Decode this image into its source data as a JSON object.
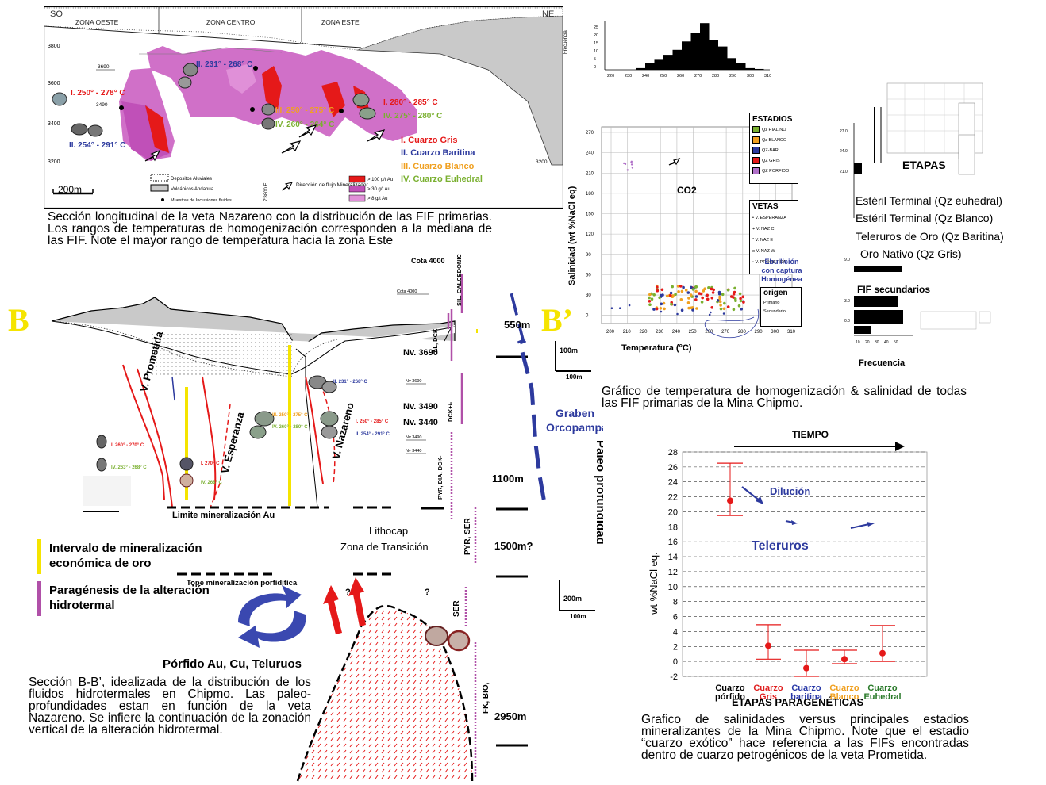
{
  "panelA": {
    "corner_sw": "SO",
    "corner_ne": "NE",
    "zones": [
      "ZONA OESTE",
      "ZONA CENTRO",
      "ZONA ESTE"
    ],
    "elevations": [
      "3800",
      "3600",
      "3400",
      "3200"
    ],
    "level_3690": "3690",
    "level_3490": "3490",
    "level_3200": "3200",
    "easting": "7'8800 E",
    "temps": {
      "west_I": "I. 250° - 278° C",
      "west_II": "II. 254° - 291° C",
      "center_II": "II. 231° - 268° C",
      "center_III": "III. 250° - 275° C",
      "center_IV": "IV. 260° - 264° C",
      "east_I": "I. 280° - 285° C",
      "east_IV": "IV. 275° - 280° C"
    },
    "stages": {
      "I": "I. Cuarzo Gris",
      "II": "II. Cuarzo Baritina",
      "III": "III. Cuarzo Blanco",
      "IV": "IV. Cuarzo Euhedral"
    },
    "scale": "200m",
    "legend": {
      "aluvial": "Depositos Aluviales",
      "volcanic": "Volcánicos Andahua",
      "samples": "Muestras de Inclusiones fluidas",
      "flow": "Dirección de flujo Mineralizador",
      "g100": "> 100 g/t Au",
      "g30": "> 30 g/t Au",
      "g8": "> 8 g/t Au"
    },
    "caption": "Sección longitudinal de la veta Nazareno con la distribución de las FIF primarias. Los rangos de temperaturas de homogenización corresponden a la mediana de las FIF. Note el mayor rango de temperatura hacia la zona Este"
  },
  "panelB": {
    "label_b": "B",
    "label_b2": "B’",
    "cota": "Cota 4000",
    "cota_small": "Cota 4000",
    "levels": [
      "Nv. 3690",
      "Nv. 3490",
      "Nv. 3440"
    ],
    "levels_small": [
      "Nv 3690",
      "Nv 3490",
      "Nv 3440"
    ],
    "veins": [
      "V. Prometida",
      "V. Esperanza",
      "V. Nazareno"
    ],
    "temps": {
      "naz_II_top": "II. 231° - 268° C",
      "naz_I": "I. 250° - 285° C",
      "naz_II": "II. 254° - 291° C",
      "esp_III": "III. 250° - 275° C",
      "esp_IV": "IV. 260° - 280° C",
      "prom_I": "I. 260° - 270° C",
      "prom_IV": "IV. 263° - 268° C",
      "mid_I": "I. 270° C",
      "mid_IV": "IV. 268° C"
    },
    "alteration": [
      "SIL, CALCEDONICA",
      "ALUNITA, DICKITA",
      "DICK+/-",
      "PYR, DIA, DICK-",
      "PYR, SER",
      "SER",
      "FK, BIO,"
    ],
    "alteration_short": [
      "SIL. CALCEDONICA",
      "AL, DCK",
      "DCK+/-",
      "PYR, DIA, DCK-",
      "PYR, SER",
      "SER",
      "FK, BIO,"
    ],
    "limit": "Limite mineralización Au",
    "lithocap": "Lithocap",
    "transition": "Zona de Transición",
    "tope": "Tope mineralización porfidítica",
    "porfido": "Pórfido Au, Cu, Teluruos",
    "porfido_full": "Pórfido Au, Cu, Teluruos",
    "question": "?",
    "depths": [
      "550m",
      "1100m",
      "1500m?",
      "2950m"
    ],
    "graben": [
      "Graben",
      "Orcopampa"
    ],
    "paleo": "Paleo profundidad",
    "scale_v": "100m",
    "scale_h": "100m",
    "scale2_v": "200m",
    "scale2_h": "100m",
    "legend_yellow": "Intervalo de mineralización económica de oro",
    "legend_purple": "Paragénesis de la alteración hidrotermal",
    "caption": "Sección B-B’, idealizada de la distribución de los fluidos hidrotermales en Chipmo. Las paleo-profundidades estan en función de la veta Nazareno. Se infiere la continuación de la zonación vertical de la alteración hidrotermal."
  },
  "scatterChart": {
    "hist_ylabel": "Frecuencia",
    "hist_yticks": [
      "25",
      "20",
      "15",
      "10",
      "5",
      "0"
    ],
    "hist_xticks": [
      "220",
      "230",
      "240",
      "250",
      "260",
      "270",
      "280",
      "290",
      "300",
      "310"
    ],
    "yticks": [
      "270",
      "240",
      "210",
      "180",
      "150",
      "120",
      "90",
      "60",
      "30",
      "0"
    ],
    "xticks": [
      "200",
      "210",
      "220",
      "230",
      "240",
      "250",
      "260",
      "270",
      "280",
      "290",
      "300",
      "310"
    ],
    "ylabel": "Salinidad (wt %NaCl eq)",
    "xlabel": "Temperatura (°C)",
    "co2": "CO2",
    "estadios_title": "ESTADIOS",
    "estadios": [
      "Qz HIALINO",
      "Qz BLANCO",
      "QZ-BAR",
      "QZ GRIS",
      "QZ PORFIDO"
    ],
    "vetas_title": "VETAS",
    "vetas": [
      "V. ESPERANZA",
      "V. NAZ C",
      "V. NAZ E",
      "V. NAZ W",
      "V. PROMETIDA"
    ],
    "ebullicion": "Ebullición con captura Homogénea",
    "origen_title": "origen",
    "origen": [
      "Primario",
      "Secundario"
    ],
    "caption": "Gráfico de temperatura de homogenización & salinidad de todas las FIF primarias de la Mina Chipmo."
  },
  "etapas": {
    "title": "ETAPAS",
    "items": [
      "Estéril Terminal (Qz euhedral)",
      "Estéril Terminal (Qz Blanco)",
      "Teleruros de Oro (Qz Baritina)",
      "Oro Nativo (Qz Gris)"
    ],
    "fif_sec": "FIF secundarios",
    "frecuencia": "Frecuencia",
    "xticks": [
      "10",
      "20",
      "30",
      "40",
      "50"
    ],
    "yticks": [
      "27.0",
      "24.0",
      "21.0",
      "9.0",
      "3.0",
      "0.0"
    ]
  },
  "chart_data": {
    "type": "scatter",
    "title": "TIEMPO",
    "xlabel": "ETAPAS PARAGENÉTICAS",
    "ylabel": "wt %NaCl eq.",
    "ylim": [
      -2,
      28
    ],
    "yticks": [
      -2,
      0,
      2,
      4,
      6,
      8,
      10,
      12,
      14,
      16,
      18,
      20,
      22,
      24,
      26,
      28
    ],
    "categories": [
      "Cuarzo pórfido",
      "Cuarzo Gris",
      "Cuarzo baritina",
      "Cuarzo Blanco",
      "Cuarzo Euhedral"
    ],
    "category_lines": [
      [
        "Cuarzo",
        "pórfido"
      ],
      [
        "Cuarzo",
        "Gris"
      ],
      [
        "Cuarzo",
        "baritina"
      ],
      [
        "Cuarzo",
        "Blanco"
      ],
      [
        "Cuarzo",
        "Euhedral"
      ]
    ],
    "category_colors": [
      "#000000",
      "#e02020",
      "#2a3aa8",
      "#f0a020",
      "#2a7a2a"
    ],
    "points": [
      {
        "category": "Cuarzo pórfido",
        "value": 21.5,
        "low": 19.5,
        "high": 26.5
      },
      {
        "category": "Cuarzo Gris",
        "value": 2.1,
        "low": 0.3,
        "high": 4.9
      },
      {
        "category": "Cuarzo baritina",
        "value": -0.9,
        "low": -2.0,
        "high": 1.5
      },
      {
        "category": "Cuarzo Blanco",
        "value": 0.3,
        "low": -0.3,
        "high": 1.5
      },
      {
        "category": "Cuarzo Euhedral",
        "value": 1.1,
        "low": 0.0,
        "high": 4.8
      }
    ],
    "annotations": [
      "Dilución",
      "Teleruros"
    ],
    "grid": true,
    "caption": "Grafico de salinidades versus principales estadios mineralizantes de la Mina Chipmo. Note que el estadio “cuarzo exótico” hace referencia a las FIFs encontradas dentro de cuarzo petrogénicos de la veta Prometida."
  },
  "colors": {
    "magenta": "#d070c8",
    "magenta_dark": "#c050b8",
    "red": "#e51919",
    "blue": "#2d3a9e",
    "orange": "#f0a020",
    "green": "#7ab030",
    "yellow": "#f5e400",
    "purple": "#b050a8"
  }
}
